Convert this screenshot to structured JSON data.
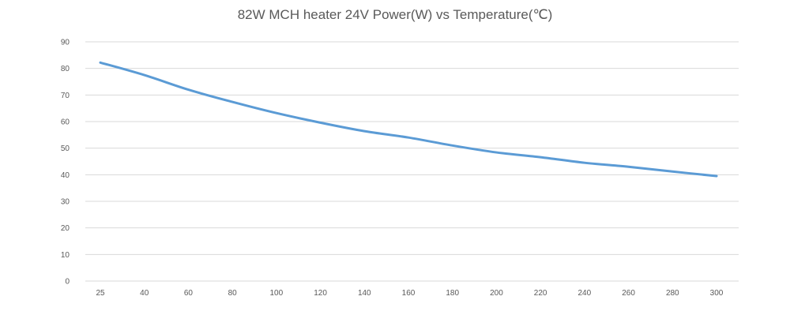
{
  "chart_data": {
    "type": "line",
    "title": "82W MCH heater 24V  Power(W) vs Temperature(℃)",
    "xlabel": "",
    "ylabel": "",
    "categories": [
      "25",
      "40",
      "60",
      "80",
      "100",
      "120",
      "140",
      "160",
      "180",
      "200",
      "220",
      "240",
      "260",
      "280",
      "300"
    ],
    "series": [
      {
        "values": [
          82.2,
          77.5,
          72,
          67.4,
          63.2,
          59.6,
          56.4,
          54,
          51,
          48.4,
          46.6,
          44.5,
          43,
          41.2,
          39.5
        ],
        "color": "#5b9bd5"
      }
    ],
    "ylim": [
      0,
      90
    ],
    "yticks": [
      0,
      10,
      20,
      30,
      40,
      50,
      60,
      70,
      80,
      90
    ],
    "grid": true,
    "legend": "none",
    "gridColor": "#d9d9d9"
  }
}
